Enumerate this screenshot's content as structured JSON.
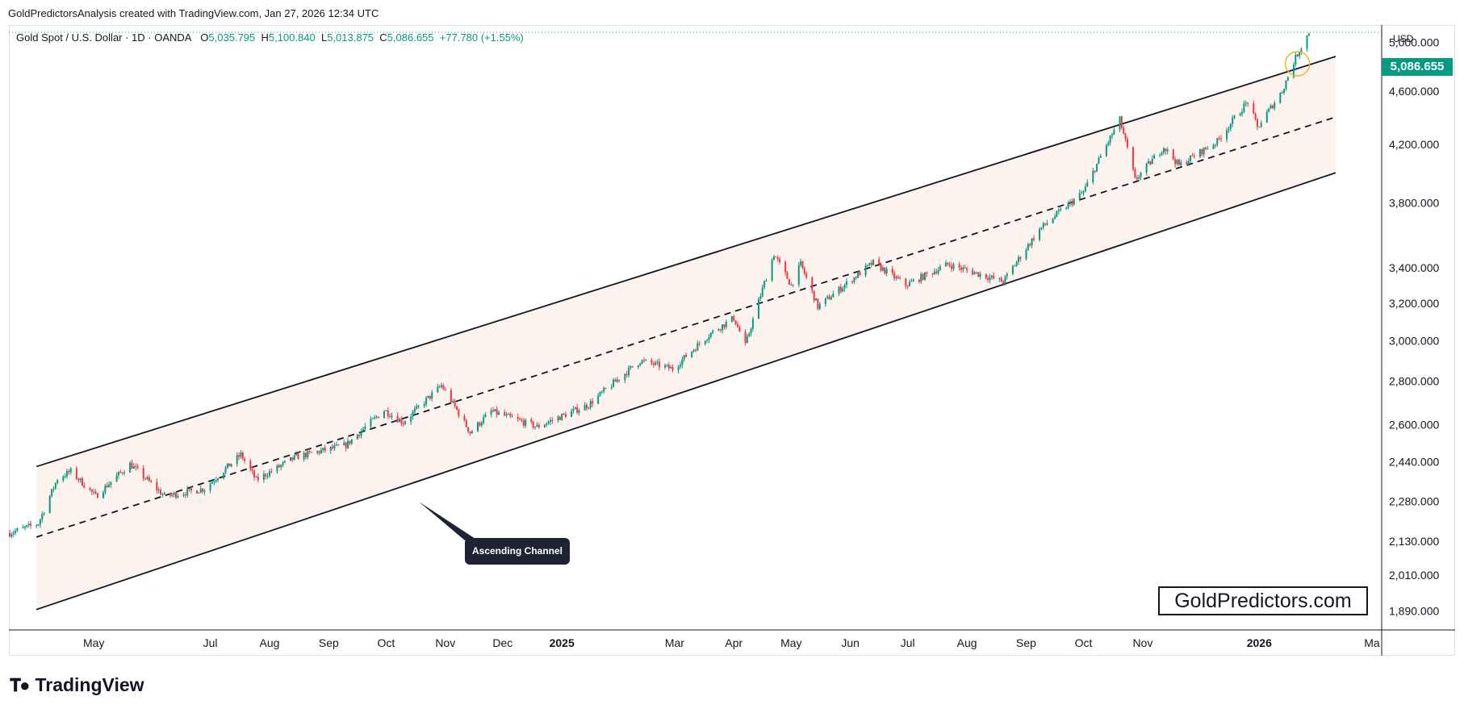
{
  "header": {
    "credit": "GoldPredictorsAnalysis created with TradingView.com, Jan 27, 2026 12:34 UTC"
  },
  "legend": {
    "symbol": "Gold Spot / U.S. Dollar · 1D · OANDA",
    "o_label": "O",
    "open": "5,035.795",
    "h_label": "H",
    "high": "5,100.840",
    "l_label": "L",
    "low": "5,013.875",
    "c_label": "C",
    "close": "5,086.655",
    "change": "+77.780 (+1.55%)"
  },
  "price_axis": {
    "currency": "USD",
    "last_price": "5,086.655"
  },
  "annotation": {
    "label": "Ascending Channel"
  },
  "watermark": "GoldPredictors.com",
  "footer": {
    "brand": "TradingView"
  },
  "colors": {
    "up": "#089981",
    "down": "#f23645",
    "channel_fill": "#fdf3ee",
    "line": "#131722",
    "highlight_circle": "#f0b429"
  },
  "chart_data": {
    "type": "candlestick",
    "title": "Gold Spot / U.S. Dollar · 1D · OANDA",
    "y_scale": "log",
    "ylim": [
      1830,
      5150
    ],
    "y_ticks": [
      "5,000.000",
      "4,600.000",
      "4,200.000",
      "3,800.000",
      "3,400.000",
      "3,200.000",
      "3,000.000",
      "2,800.000",
      "2,600.000",
      "2,440.000",
      "2,280.000",
      "2,130.000",
      "2,010.000",
      "1,890.000"
    ],
    "x_ticks": [
      {
        "label": "May",
        "date": "2024-05-01"
      },
      {
        "label": "Jul",
        "date": "2024-07-01"
      },
      {
        "label": "Aug",
        "date": "2024-08-01"
      },
      {
        "label": "Sep",
        "date": "2024-09-01"
      },
      {
        "label": "Oct",
        "date": "2024-10-01"
      },
      {
        "label": "Nov",
        "date": "2024-11-01"
      },
      {
        "label": "Dec",
        "date": "2024-12-01"
      },
      {
        "label": "2025",
        "date": "2025-01-01",
        "bold": true
      },
      {
        "label": "Mar",
        "date": "2025-03-01"
      },
      {
        "label": "Apr",
        "date": "2025-04-01"
      },
      {
        "label": "May",
        "date": "2025-05-01"
      },
      {
        "label": "Jun",
        "date": "2025-06-01"
      },
      {
        "label": "Jul",
        "date": "2025-07-01"
      },
      {
        "label": "Aug",
        "date": "2025-08-01"
      },
      {
        "label": "Sep",
        "date": "2025-09-01"
      },
      {
        "label": "Oct",
        "date": "2025-10-01"
      },
      {
        "label": "Nov",
        "date": "2025-11-01"
      },
      {
        "label": "2026",
        "date": "2026-01-01",
        "bold": true
      },
      {
        "label": "Ma",
        "date": "2026-03-01"
      }
    ],
    "price_path": [
      {
        "date": "2024-03-18",
        "price": 2160
      },
      {
        "date": "2024-04-02",
        "price": 2195
      },
      {
        "date": "2024-04-12",
        "price": 2370
      },
      {
        "date": "2024-04-19",
        "price": 2400
      },
      {
        "date": "2024-05-02",
        "price": 2300
      },
      {
        "date": "2024-05-20",
        "price": 2430
      },
      {
        "date": "2024-06-07",
        "price": 2300
      },
      {
        "date": "2024-06-28",
        "price": 2330
      },
      {
        "date": "2024-07-17",
        "price": 2470
      },
      {
        "date": "2024-07-25",
        "price": 2365
      },
      {
        "date": "2024-08-15",
        "price": 2460
      },
      {
        "date": "2024-09-10",
        "price": 2510
      },
      {
        "date": "2024-09-30",
        "price": 2665
      },
      {
        "date": "2024-10-10",
        "price": 2610
      },
      {
        "date": "2024-10-30",
        "price": 2780
      },
      {
        "date": "2024-11-14",
        "price": 2565
      },
      {
        "date": "2024-11-25",
        "price": 2660
      },
      {
        "date": "2024-12-19",
        "price": 2590
      },
      {
        "date": "2025-01-15",
        "price": 2690
      },
      {
        "date": "2025-02-11",
        "price": 2900
      },
      {
        "date": "2025-02-28",
        "price": 2860
      },
      {
        "date": "2025-03-20",
        "price": 3040
      },
      {
        "date": "2025-04-01",
        "price": 3120
      },
      {
        "date": "2025-04-07",
        "price": 2975
      },
      {
        "date": "2025-04-22",
        "price": 3480
      },
      {
        "date": "2025-05-01",
        "price": 3300
      },
      {
        "date": "2025-05-06",
        "price": 3420
      },
      {
        "date": "2025-05-15",
        "price": 3180
      },
      {
        "date": "2025-06-13",
        "price": 3430
      },
      {
        "date": "2025-06-30",
        "price": 3300
      },
      {
        "date": "2025-07-22",
        "price": 3420
      },
      {
        "date": "2025-08-20",
        "price": 3320
      },
      {
        "date": "2025-09-08",
        "price": 3630
      },
      {
        "date": "2025-10-01",
        "price": 3870
      },
      {
        "date": "2025-10-20",
        "price": 4380
      },
      {
        "date": "2025-10-28",
        "price": 3950
      },
      {
        "date": "2025-11-12",
        "price": 4180
      },
      {
        "date": "2025-11-20",
        "price": 4050
      },
      {
        "date": "2025-12-10",
        "price": 4220
      },
      {
        "date": "2025-12-26",
        "price": 4520
      },
      {
        "date": "2025-12-31",
        "price": 4320
      },
      {
        "date": "2026-01-13",
        "price": 4600
      },
      {
        "date": "2026-01-20",
        "price": 4870
      },
      {
        "date": "2026-01-27",
        "price": 5087
      }
    ],
    "channel": {
      "upper": [
        {
          "date": "2024-04-01",
          "price": 2420
        },
        {
          "date": "2026-02-10",
          "price": 4880
        }
      ],
      "middle": [
        {
          "date": "2024-04-01",
          "price": 2145
        },
        {
          "date": "2026-02-10",
          "price": 4400
        }
      ],
      "lower": [
        {
          "date": "2024-04-01",
          "price": 1895
        },
        {
          "date": "2026-02-10",
          "price": 4000
        }
      ]
    },
    "last_bar": {
      "open": 5035.795,
      "high": 5100.84,
      "low": 5013.875,
      "close": 5086.655,
      "change": 77.78,
      "change_pct": 1.55
    }
  }
}
